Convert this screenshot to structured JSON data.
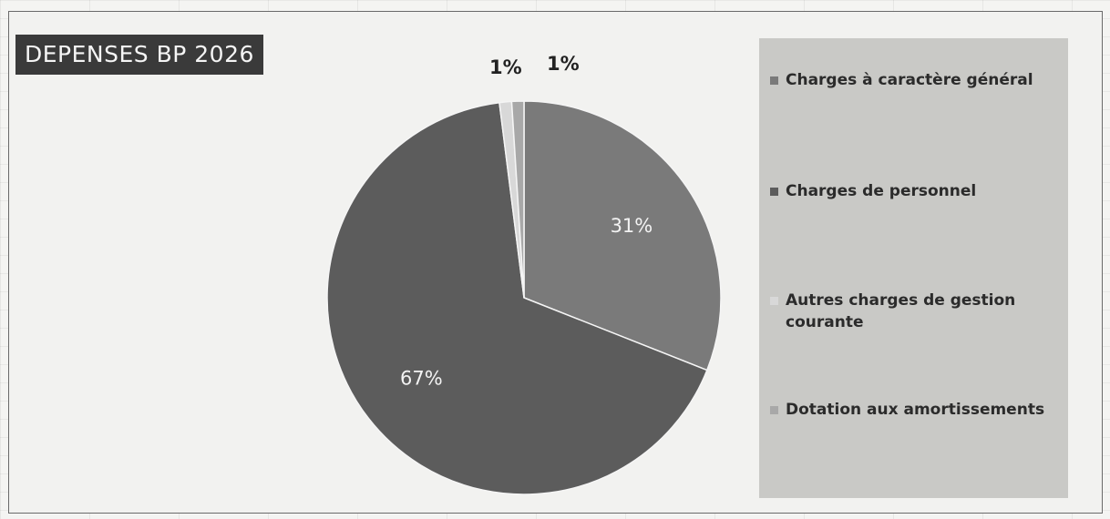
{
  "chart_data": {
    "type": "pie",
    "title": "DEPENSES BP 2026",
    "categories": [
      "Charges à caractère général",
      "Charges de personnel",
      "Autres charges de gestion courante",
      "Dotation aux amortissements"
    ],
    "values": [
      31,
      67,
      1,
      1
    ],
    "data_labels": [
      "31%",
      "67%",
      "1%",
      "1%"
    ],
    "colors": [
      "#7a7a7a",
      "#5c5c5c",
      "#d8d8d8",
      "#a8a8a8"
    ],
    "legend_position": "right"
  }
}
